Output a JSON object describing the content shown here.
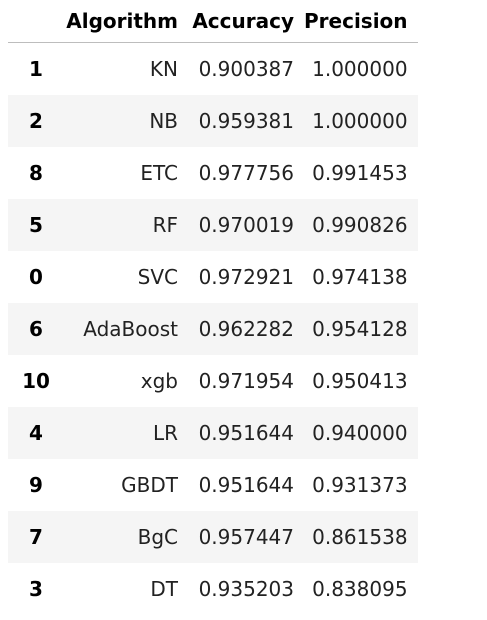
{
  "table": {
    "columns": [
      "",
      "Algorithm",
      "Accuracy",
      "Precision"
    ],
    "rows": [
      {
        "index": "1",
        "algorithm": "KN",
        "accuracy": "0.900387",
        "precision": "1.000000"
      },
      {
        "index": "2",
        "algorithm": "NB",
        "accuracy": "0.959381",
        "precision": "1.000000"
      },
      {
        "index": "8",
        "algorithm": "ETC",
        "accuracy": "0.977756",
        "precision": "0.991453"
      },
      {
        "index": "5",
        "algorithm": "RF",
        "accuracy": "0.970019",
        "precision": "0.990826"
      },
      {
        "index": "0",
        "algorithm": "SVC",
        "accuracy": "0.972921",
        "precision": "0.974138"
      },
      {
        "index": "6",
        "algorithm": "AdaBoost",
        "accuracy": "0.962282",
        "precision": "0.954128"
      },
      {
        "index": "10",
        "algorithm": "xgb",
        "accuracy": "0.971954",
        "precision": "0.950413"
      },
      {
        "index": "4",
        "algorithm": "LR",
        "accuracy": "0.951644",
        "precision": "0.940000"
      },
      {
        "index": "9",
        "algorithm": "GBDT",
        "accuracy": "0.951644",
        "precision": "0.931373"
      },
      {
        "index": "7",
        "algorithm": "BgC",
        "accuracy": "0.957447",
        "precision": "0.861538"
      },
      {
        "index": "3",
        "algorithm": "DT",
        "accuracy": "0.935203",
        "precision": "0.838095"
      }
    ]
  }
}
